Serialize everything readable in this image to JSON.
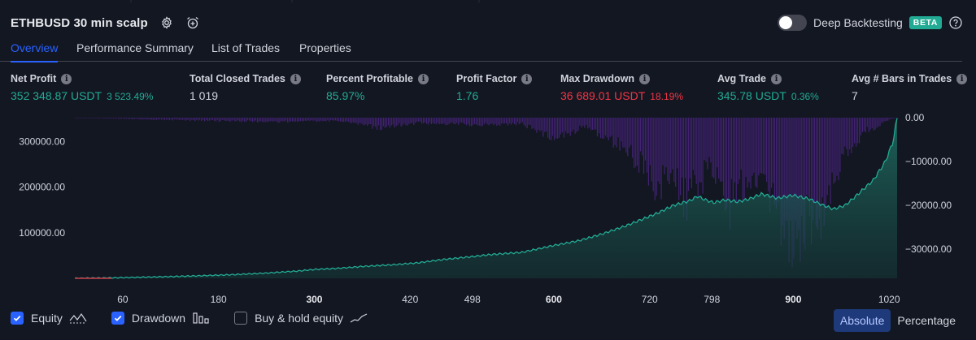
{
  "header": {
    "title": "ETHBUSD 30 min scalp",
    "settings_icon": "gear-icon",
    "alert_icon": "alarm-clock-plus-icon",
    "deep_backtesting_label": "Deep Backtesting",
    "deep_backtesting_enabled": false,
    "beta_badge": "BETA",
    "help_icon": "question-mark-icon"
  },
  "tabs": [
    {
      "label": "Overview",
      "active": true
    },
    {
      "label": "Performance Summary",
      "active": false
    },
    {
      "label": "List of Trades",
      "active": false
    },
    {
      "label": "Properties",
      "active": false
    }
  ],
  "stats": [
    {
      "label": "Net Profit",
      "value": "352 348.87 USDT",
      "sub": "3 523.49%",
      "tone": "pos"
    },
    {
      "label": "Total Closed Trades",
      "value": "1 019",
      "sub": "",
      "tone": "white"
    },
    {
      "label": "Percent Profitable",
      "value": "85.97%",
      "sub": "",
      "tone": "pos"
    },
    {
      "label": "Profit Factor",
      "value": "1.76",
      "sub": "",
      "tone": "pos"
    },
    {
      "label": "Max Drawdown",
      "value": "36 689.01 USDT",
      "sub": "18.19%",
      "tone": "neg"
    },
    {
      "label": "Avg Trade",
      "value": "345.78 USDT",
      "sub": "0.36%",
      "tone": "pos"
    },
    {
      "label": "Avg # Bars in Trades",
      "value": "7",
      "sub": "",
      "tone": "white"
    }
  ],
  "chart_data": {
    "type": "area",
    "x_ticks": [
      {
        "label": "60",
        "x": 60,
        "bold": false
      },
      {
        "label": "180",
        "x": 180,
        "bold": false
      },
      {
        "label": "300",
        "x": 300,
        "bold": true
      },
      {
        "label": "420",
        "x": 420,
        "bold": false
      },
      {
        "label": "498",
        "x": 498,
        "bold": false
      },
      {
        "label": "600",
        "x": 600,
        "bold": true
      },
      {
        "label": "720",
        "x": 720,
        "bold": false
      },
      {
        "label": "798",
        "x": 798,
        "bold": false
      },
      {
        "label": "900",
        "x": 900,
        "bold": true
      },
      {
        "label": "1020",
        "x": 1020,
        "bold": false
      }
    ],
    "xlim": [
      0,
      1030
    ],
    "left_axis": {
      "ticks": [
        {
          "label": "100000.00",
          "v": 100000
        },
        {
          "label": "200000.00",
          "v": 200000
        },
        {
          "label": "300000.00",
          "v": 300000
        }
      ],
      "ylim": [
        0,
        352349
      ]
    },
    "right_axis": {
      "ticks": [
        {
          "label": "0.00",
          "v": 0
        },
        {
          "label": "−10000.00",
          "v": -10000
        },
        {
          "label": "−20000.00",
          "v": -20000
        },
        {
          "label": "−30000.00",
          "v": -30000
        }
      ],
      "ylim": [
        -36689,
        0
      ]
    },
    "series": [
      {
        "name": "Equity",
        "color": "#22ab94",
        "points": [
          [
            0,
            0
          ],
          [
            40,
            900
          ],
          [
            80,
            2200
          ],
          [
            120,
            3800
          ],
          [
            160,
            5800
          ],
          [
            200,
            8200
          ],
          [
            240,
            11500
          ],
          [
            280,
            16000
          ],
          [
            300,
            19500
          ],
          [
            330,
            22000
          ],
          [
            360,
            26000
          ],
          [
            400,
            30000
          ],
          [
            430,
            34000
          ],
          [
            460,
            41000
          ],
          [
            500,
            48000
          ],
          [
            520,
            52000
          ],
          [
            560,
            57000
          ],
          [
            600,
            72000
          ],
          [
            630,
            82000
          ],
          [
            660,
            97000
          ],
          [
            690,
            115000
          ],
          [
            710,
            129000
          ],
          [
            730,
            143000
          ],
          [
            750,
            160000
          ],
          [
            770,
            170000
          ],
          [
            780,
            180000
          ],
          [
            790,
            172000
          ],
          [
            800,
            166000
          ],
          [
            815,
            172000
          ],
          [
            830,
            168000
          ],
          [
            845,
            174000
          ],
          [
            860,
            185000
          ],
          [
            880,
            176000
          ],
          [
            900,
            182000
          ],
          [
            920,
            174000
          ],
          [
            935,
            162000
          ],
          [
            950,
            152000
          ],
          [
            965,
            160000
          ],
          [
            980,
            183000
          ],
          [
            1000,
            215000
          ],
          [
            1015,
            255000
          ],
          [
            1025,
            300000
          ],
          [
            1030,
            352349
          ]
        ]
      },
      {
        "name": "Drawdown",
        "color": "#7b2cbf",
        "points": [
          [
            0,
            0
          ],
          [
            150,
            -800
          ],
          [
            250,
            -1200
          ],
          [
            330,
            -900
          ],
          [
            380,
            -3000
          ],
          [
            430,
            -1500
          ],
          [
            500,
            -2000
          ],
          [
            560,
            -1800
          ],
          [
            600,
            -6000
          ],
          [
            640,
            -2500
          ],
          [
            680,
            -8000
          ],
          [
            710,
            -14000
          ],
          [
            730,
            -20500
          ],
          [
            745,
            -16000
          ],
          [
            765,
            -24000
          ],
          [
            780,
            -19000
          ],
          [
            800,
            -14000
          ],
          [
            820,
            -26000
          ],
          [
            840,
            -19000
          ],
          [
            860,
            -16000
          ],
          [
            880,
            -29000
          ],
          [
            900,
            -36689
          ],
          [
            915,
            -30000
          ],
          [
            930,
            -33000
          ],
          [
            945,
            -22000
          ],
          [
            960,
            -12000
          ],
          [
            975,
            -8000
          ],
          [
            990,
            -4000
          ],
          [
            1005,
            -2500
          ],
          [
            1020,
            -500
          ],
          [
            1030,
            0
          ]
        ]
      }
    ],
    "legend": [
      {
        "label": "Equity",
        "checked": true,
        "icon": "equity-line-icon"
      },
      {
        "label": "Drawdown",
        "checked": true,
        "icon": "drawdown-bars-icon"
      },
      {
        "label": "Buy & hold equity",
        "checked": false,
        "icon": "buy-hold-line-icon"
      }
    ]
  },
  "mode_switch": {
    "absolute": "Absolute",
    "percentage": "Percentage",
    "selected": "Absolute"
  }
}
